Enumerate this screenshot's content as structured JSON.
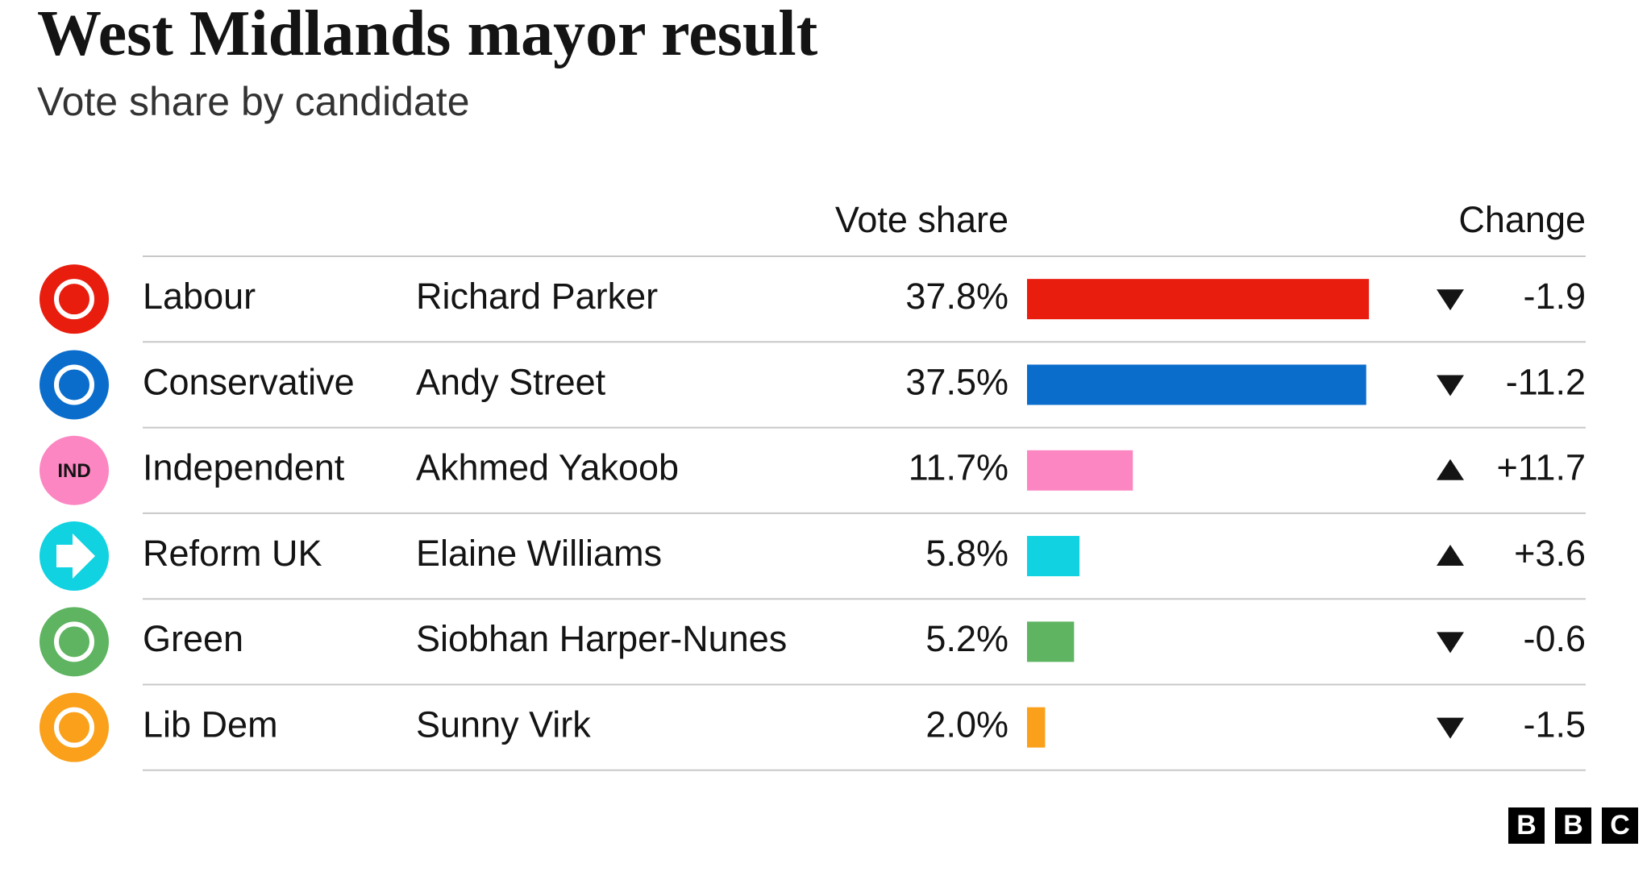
{
  "chart_data": {
    "type": "bar",
    "title": "West Midlands mayor result",
    "subtitle": "Vote share by candidate",
    "column_headers": {
      "value": "Vote share",
      "change": "Change"
    },
    "categories": [
      "Labour",
      "Conservative",
      "Independent",
      "Reform UK",
      "Green",
      "Lib Dem"
    ],
    "candidates": [
      "Richard Parker",
      "Andy Street",
      "Akhmed Yakoob",
      "Elaine Williams",
      "Siobhan Harper-Nunes",
      "Sunny Virk"
    ],
    "values": [
      37.8,
      37.5,
      11.7,
      5.8,
      5.2,
      2.0
    ],
    "value_labels": [
      "37.8%",
      "37.5%",
      "11.7%",
      "5.8%",
      "5.2%",
      "2.0%"
    ],
    "colors": [
      "#e91d0e",
      "#0a6dcc",
      "#fc86c2",
      "#10d2e0",
      "#5eb461",
      "#faa01a"
    ],
    "icon_labels": [
      null,
      null,
      "IND",
      null,
      null,
      null
    ],
    "change": [
      -1.9,
      -11.2,
      11.7,
      3.6,
      -0.6,
      -1.5
    ],
    "change_labels": [
      "-1.9",
      "-11.2",
      "+11.7",
      "+3.6",
      "-0.6",
      "-1.5"
    ],
    "logo": [
      "B",
      "B",
      "C"
    ]
  }
}
